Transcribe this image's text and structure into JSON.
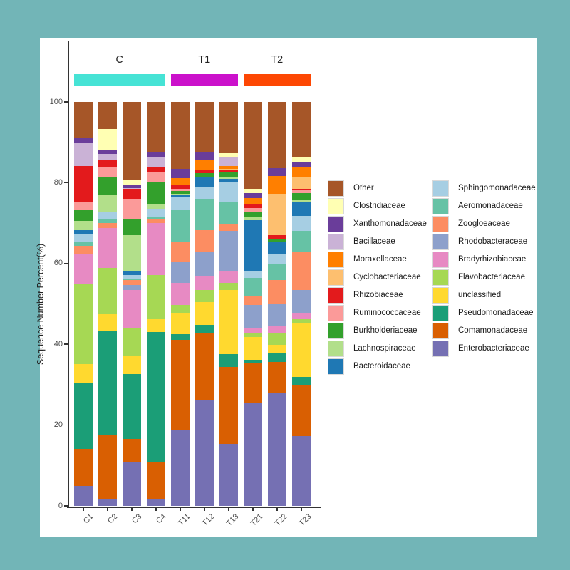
{
  "frame": {
    "background_color": "#72B5B7",
    "panel_color": "#FFFFFF"
  },
  "chart_data": {
    "type": "bar",
    "variant": "stacked-percent",
    "title": "",
    "ylabel": "Sequence Number Percent(%)",
    "xlabel": "",
    "ylim": [
      0,
      100
    ],
    "yticks": [
      0,
      20,
      40,
      60,
      80,
      100
    ],
    "grid": false,
    "legend_position": "right",
    "categories": [
      "C1",
      "C2",
      "C3",
      "C4",
      "T11",
      "T12",
      "T13",
      "T21",
      "T22",
      "T23"
    ],
    "groups": [
      {
        "label": "C",
        "color": "#46E3D5",
        "categories": [
          "C1",
          "C2",
          "C3",
          "C4"
        ]
      },
      {
        "label": "T1",
        "color": "#CB11CB",
        "categories": [
          "T11",
          "T12",
          "T13"
        ]
      },
      {
        "label": "T2",
        "color": "#FD4703",
        "categories": [
          "T21",
          "T22",
          "T23"
        ]
      }
    ],
    "stack_order_top_to_bottom": [
      "Other",
      "Clostridiaceae",
      "Xanthomonadaceae",
      "Bacillaceae",
      "Moraxellaceae",
      "Cyclobacteriaceae",
      "Rhizobiaceae",
      "Ruminococcaceae",
      "Burkholderiaceae",
      "Lachnospiraceae",
      "Bacteroidaceae",
      "Sphingomonadaceae",
      "Aeromonadaceae",
      "Zoogloeaceae",
      "Rhodobacteraceae",
      "Bradyrhizobiaceae",
      "Flavobacteriaceae",
      "unclassified",
      "Pseudomonadaceae",
      "Comamonadaceae",
      "Enterobacteriaceae"
    ],
    "series": [
      {
        "name": "Other",
        "color": "#A65628",
        "values": [
          9.1,
          6.8,
          19.2,
          12.3,
          16.6,
          12.4,
          12.7,
          21.5,
          16.5,
          13.6
        ]
      },
      {
        "name": "Clostridiaceae",
        "color": "#FFFFB3",
        "values": [
          0,
          5.0,
          1.5,
          0,
          0,
          0,
          0.9,
          1.2,
          0,
          1.2
        ]
      },
      {
        "name": "Xanthomonadaceae",
        "color": "#6A3D9A",
        "values": [
          1.2,
          1.2,
          0.6,
          1.2,
          2.3,
          2.1,
          0,
          1.2,
          1.8,
          1.5
        ]
      },
      {
        "name": "Bacillaceae",
        "color": "#CAB2D6",
        "values": [
          5.6,
          1.5,
          0.3,
          2.6,
          0,
          0,
          2.3,
          0,
          0,
          0
        ]
      },
      {
        "name": "Moraxellaceae",
        "color": "#FF7F00",
        "values": [
          0,
          0,
          0,
          0,
          1.5,
          2.3,
          0.7,
          1.5,
          4.4,
          2.3
        ]
      },
      {
        "name": "Cyclobacteriaceae",
        "color": "#FDBF6F",
        "values": [
          0,
          0,
          0,
          0,
          0.3,
          0,
          0.3,
          0,
          10.3,
          2.9
        ]
      },
      {
        "name": "Rhizobiaceae",
        "color": "#E31A1C",
        "values": [
          8.9,
          1.8,
          2.6,
          1.2,
          0.9,
          0.9,
          0.7,
          0.9,
          0.9,
          0.5
        ]
      },
      {
        "name": "Ruminococcaceae",
        "color": "#FB9A99",
        "values": [
          2.1,
          2.4,
          4.7,
          2.7,
          0.5,
          0,
          0,
          0.9,
          0,
          0.7
        ]
      },
      {
        "name": "Burkholderiaceae",
        "color": "#33A02C",
        "values": [
          2.6,
          4.4,
          4.1,
          5.3,
          0.7,
          0.9,
          1.2,
          1.5,
          0.9,
          1.8
        ]
      },
      {
        "name": "Lachnospiraceae",
        "color": "#B2DF8A",
        "values": [
          2.3,
          4.1,
          9.1,
          1.1,
          0.4,
          0,
          0.3,
          0.6,
          0,
          0.3
        ]
      },
      {
        "name": "Bacteroidaceae",
        "color": "#1F78B4",
        "values": [
          0.9,
          0,
          0.9,
          0,
          0.5,
          2.6,
          0.9,
          12.6,
          2.9,
          3.5
        ]
      },
      {
        "name": "Sphingomonadaceae",
        "color": "#A6CEE3",
        "values": [
          2.1,
          2.0,
          0.9,
          2.1,
          3.2,
          2.9,
          5.0,
          1.8,
          2.3,
          3.8
        ]
      },
      {
        "name": "Aeromonadaceae",
        "color": "#66C2A5",
        "values": [
          0.9,
          0.9,
          0.3,
          0.5,
          7.9,
          7.6,
          5.3,
          4.4,
          4.1,
          5.3
        ]
      },
      {
        "name": "Zoogloeaceae",
        "color": "#FC8D62",
        "values": [
          2.1,
          1.2,
          1.2,
          0.9,
          5.0,
          5.3,
          1.8,
          2.3,
          5.9,
          9.4
        ]
      },
      {
        "name": "Rhodobacteraceae",
        "color": "#8DA0CB",
        "values": [
          0,
          0,
          1.2,
          0,
          5.0,
          6.1,
          10.0,
          5.9,
          5.6,
          5.6
        ]
      },
      {
        "name": "Bradyrhizobiaceae",
        "color": "#E78AC3",
        "values": [
          7.3,
          10.0,
          9.7,
          13.0,
          5.6,
          3.5,
          2.9,
          1.2,
          1.8,
          1.5
        ]
      },
      {
        "name": "Flavobacteriaceae",
        "color": "#A6D854",
        "values": [
          20.0,
          11.5,
          6.8,
          10.9,
          1.8,
          3.0,
          1.8,
          0.9,
          2.9,
          0.9
        ]
      },
      {
        "name": "unclassified",
        "color": "#FFD92F",
        "values": [
          4.7,
          4.1,
          4.4,
          3.2,
          5.3,
          5.6,
          15.9,
          5.6,
          2.1,
          13.5
        ]
      },
      {
        "name": "Pseudomonadaceae",
        "color": "#1B9E77",
        "values": [
          16.5,
          25.8,
          16.2,
          32.0,
          1.5,
          2.1,
          3.2,
          0.9,
          2.1,
          2.1
        ]
      },
      {
        "name": "Comamonadaceae",
        "color": "#D95F02",
        "values": [
          9.1,
          16.2,
          5.5,
          9.1,
          22.3,
          16.4,
          19.1,
          9.7,
          7.7,
          12.6
        ]
      },
      {
        "name": "Enterobacteriaceae",
        "color": "#7570B3",
        "values": [
          5.0,
          1.5,
          11.0,
          1.8,
          18.8,
          26.2,
          15.3,
          25.6,
          27.9,
          17.3
        ]
      }
    ]
  },
  "legend": {
    "columns": [
      [
        "Other",
        "Clostridiaceae",
        "Xanthomonadaceae",
        "Bacillaceae",
        "Moraxellaceae",
        "Cyclobacteriaceae",
        "Rhizobiaceae",
        "Ruminococcaceae",
        "Burkholderiaceae",
        "Lachnospiraceae",
        "Bacteroidaceae"
      ],
      [
        "Sphingomonadaceae",
        "Aeromonadaceae",
        "Zoogloeaceae",
        "Rhodobacteraceae",
        "Bradyrhizobiaceae",
        "Flavobacteriaceae",
        "unclassified",
        "Pseudomonadaceae",
        "Comamonadaceae",
        "Enterobacteriaceae"
      ]
    ]
  }
}
